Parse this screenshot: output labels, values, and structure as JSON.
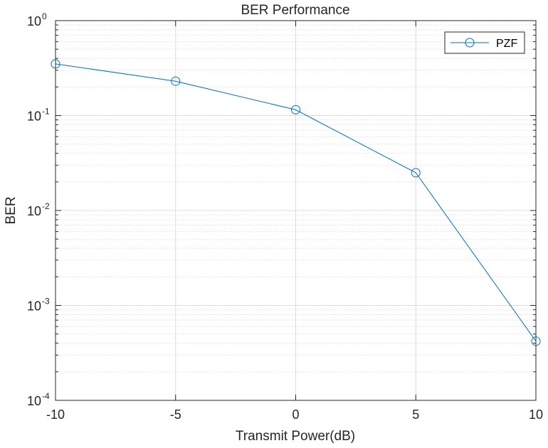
{
  "chart_data": {
    "type": "line",
    "title": "BER Performance",
    "xlabel": "Transmit Power(dB)",
    "ylabel": "BER",
    "xlim": [
      -10,
      10
    ],
    "ylim": [
      0.0001,
      1
    ],
    "yscale": "log",
    "x_ticks": [
      -10,
      -5,
      0,
      5,
      10
    ],
    "x_tick_labels": [
      "-10",
      "-5",
      "0",
      "5",
      "10"
    ],
    "y_ticks": [
      0.0001,
      0.001,
      0.01,
      0.1,
      1
    ],
    "y_tick_labels": [
      {
        "base": "10",
        "exp": "-4"
      },
      {
        "base": "10",
        "exp": "-3"
      },
      {
        "base": "10",
        "exp": "-2"
      },
      {
        "base": "10",
        "exp": "-1"
      },
      {
        "base": "10",
        "exp": "0"
      }
    ],
    "grid": true,
    "minor_grid": true,
    "legend_position": "top-right",
    "series": [
      {
        "name": "PZF",
        "color": "#0072bd",
        "marker": "circle",
        "x": [
          -10,
          -5,
          0,
          5,
          10
        ],
        "y": [
          0.35,
          0.23,
          0.115,
          0.025,
          0.00042
        ]
      }
    ]
  }
}
